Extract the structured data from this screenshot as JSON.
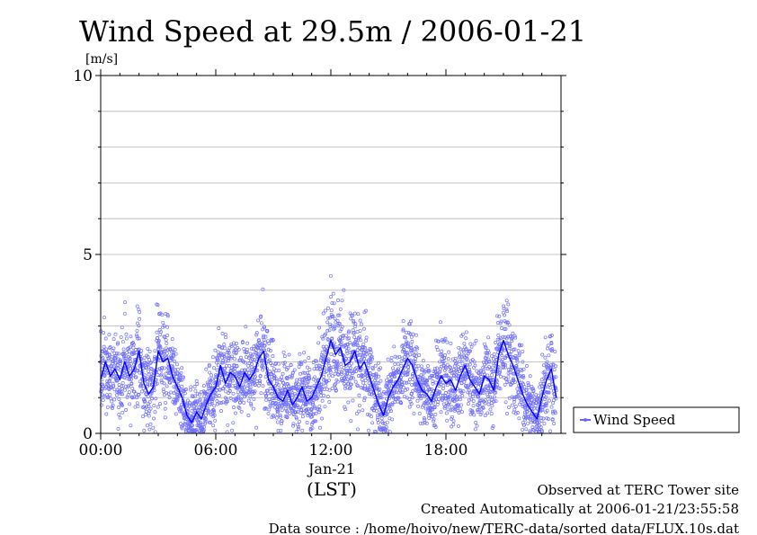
{
  "chart_data": {
    "type": "scatter",
    "title": "Wind Speed at 29.5m / 2006-01-21",
    "unit_label": "[m/s]",
    "ylim": [
      0,
      10
    ],
    "y_ticks": [
      "0",
      "5",
      "10"
    ],
    "y_tick_values": [
      0,
      5,
      10
    ],
    "y_gridlines": [
      1,
      2,
      3,
      4,
      5,
      6,
      7,
      8,
      9
    ],
    "xlim_hours": [
      0,
      24
    ],
    "x_ticks": [
      "00:00",
      "06:00",
      "12:00",
      "18:00"
    ],
    "x_tick_hours": [
      0,
      6,
      12,
      18
    ],
    "x_date_label": "Jan-21",
    "x_timezone_label": "(LST)",
    "grid": true,
    "legend_position": "right",
    "series": [
      {
        "name": "Wind Speed",
        "color": "#0000ff",
        "scatter_color": "#6f6fff",
        "mean_line_hours": [
          0,
          0.25,
          0.5,
          0.75,
          1,
          1.25,
          1.5,
          1.75,
          2,
          2.25,
          2.5,
          2.75,
          3,
          3.25,
          3.5,
          3.75,
          4,
          4.25,
          4.5,
          4.75,
          5,
          5.25,
          5.5,
          5.75,
          6,
          6.25,
          6.5,
          6.75,
          7,
          7.25,
          7.5,
          7.75,
          8,
          8.25,
          8.5,
          8.75,
          9,
          9.25,
          9.5,
          9.75,
          10,
          10.25,
          10.5,
          10.75,
          11,
          11.25,
          11.5,
          11.75,
          12,
          12.25,
          12.5,
          12.75,
          13,
          13.25,
          13.5,
          13.75,
          14,
          14.25,
          14.5,
          14.75,
          15,
          15.25,
          15.5,
          15.75,
          16,
          16.25,
          16.5,
          16.75,
          17,
          17.25,
          17.5,
          17.75,
          18,
          18.25,
          18.5,
          18.75,
          19,
          19.25,
          19.5,
          19.75,
          20,
          20.25,
          20.5,
          20.75,
          21,
          21.25,
          21.5,
          21.75,
          22,
          22.25,
          22.5,
          22.75,
          23,
          23.25,
          23.5,
          23.75
        ],
        "mean_line_values": [
          1.5,
          2.0,
          1.6,
          1.8,
          1.5,
          2.0,
          1.6,
          1.8,
          2.3,
          1.4,
          1.1,
          1.3,
          2.3,
          2.0,
          2.1,
          1.6,
          1.3,
          1.0,
          0.5,
          0.3,
          0.6,
          0.4,
          0.8,
          1.1,
          1.3,
          1.9,
          1.4,
          1.7,
          1.6,
          1.3,
          1.7,
          1.5,
          1.7,
          2.1,
          2.3,
          1.5,
          1.3,
          1.0,
          0.9,
          1.2,
          0.8,
          1.0,
          1.3,
          0.9,
          1.0,
          1.3,
          1.6,
          2.1,
          2.6,
          2.2,
          2.4,
          1.9,
          2.0,
          2.3,
          1.8,
          2.0,
          1.6,
          1.2,
          0.8,
          0.5,
          1.0,
          1.3,
          1.5,
          1.8,
          2.1,
          1.9,
          1.5,
          1.2,
          1.1,
          0.9,
          1.3,
          1.6,
          1.4,
          1.5,
          1.2,
          1.6,
          1.9,
          1.5,
          1.3,
          1.1,
          1.6,
          1.5,
          1.2,
          2.2,
          2.6,
          2.2,
          1.9,
          1.5,
          1.1,
          0.8,
          0.6,
          0.4,
          1.0,
          1.5,
          1.8,
          1.0
        ]
      }
    ]
  },
  "footer": {
    "line1": "Observed at TERC Tower site",
    "line2": "Created Automatically at 2006-01-21/23:55:58",
    "line3": "Data source : /home/hoivo/new/TERC-data/sorted  data/FLUX.10s.dat"
  }
}
